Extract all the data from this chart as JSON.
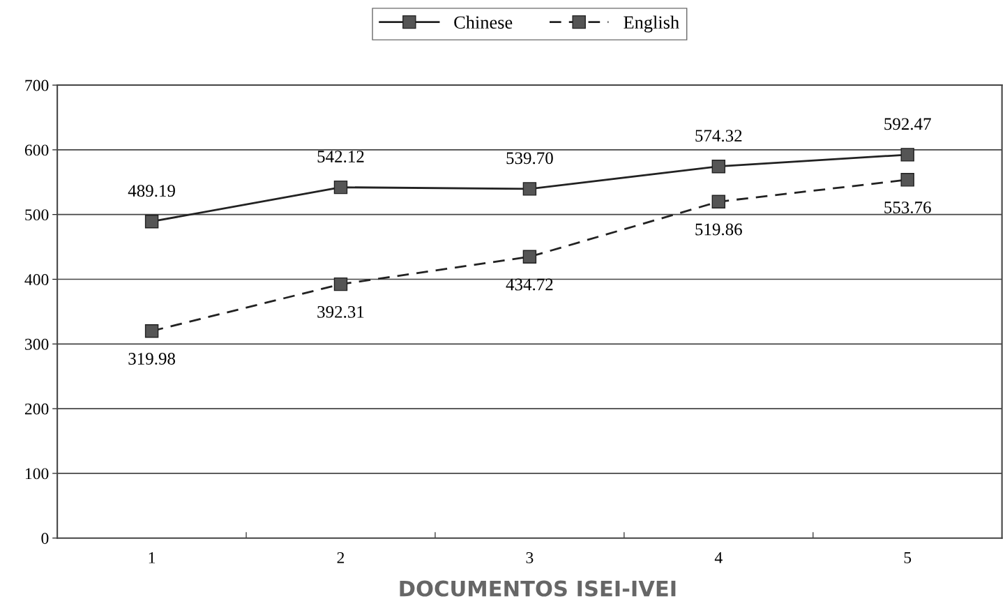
{
  "chart_data": {
    "type": "line",
    "categories": [
      "1",
      "2",
      "3",
      "4",
      "5"
    ],
    "series": [
      {
        "name": "Chinese",
        "color": "#555555",
        "line_style": "solid",
        "values": [
          489.19,
          542.12,
          539.7,
          574.32,
          592.47
        ],
        "value_labels": [
          "489.19",
          "542.12",
          "539.70",
          "574.32",
          "592.47"
        ]
      },
      {
        "name": "English",
        "color": "#555555",
        "line_style": "dashed",
        "values": [
          319.98,
          392.31,
          434.72,
          519.86,
          553.76
        ],
        "value_labels": [
          "319.98",
          "392.31",
          "434.72",
          "519.86",
          "553.76"
        ]
      }
    ],
    "ylim": [
      0,
      700
    ],
    "yticks": [
      0,
      100,
      200,
      300,
      400,
      500,
      600,
      700
    ],
    "grid": "y",
    "legend": "top",
    "marker": "square",
    "annotations": [
      "DOCUMENTOS ISEI-IVEI"
    ]
  }
}
